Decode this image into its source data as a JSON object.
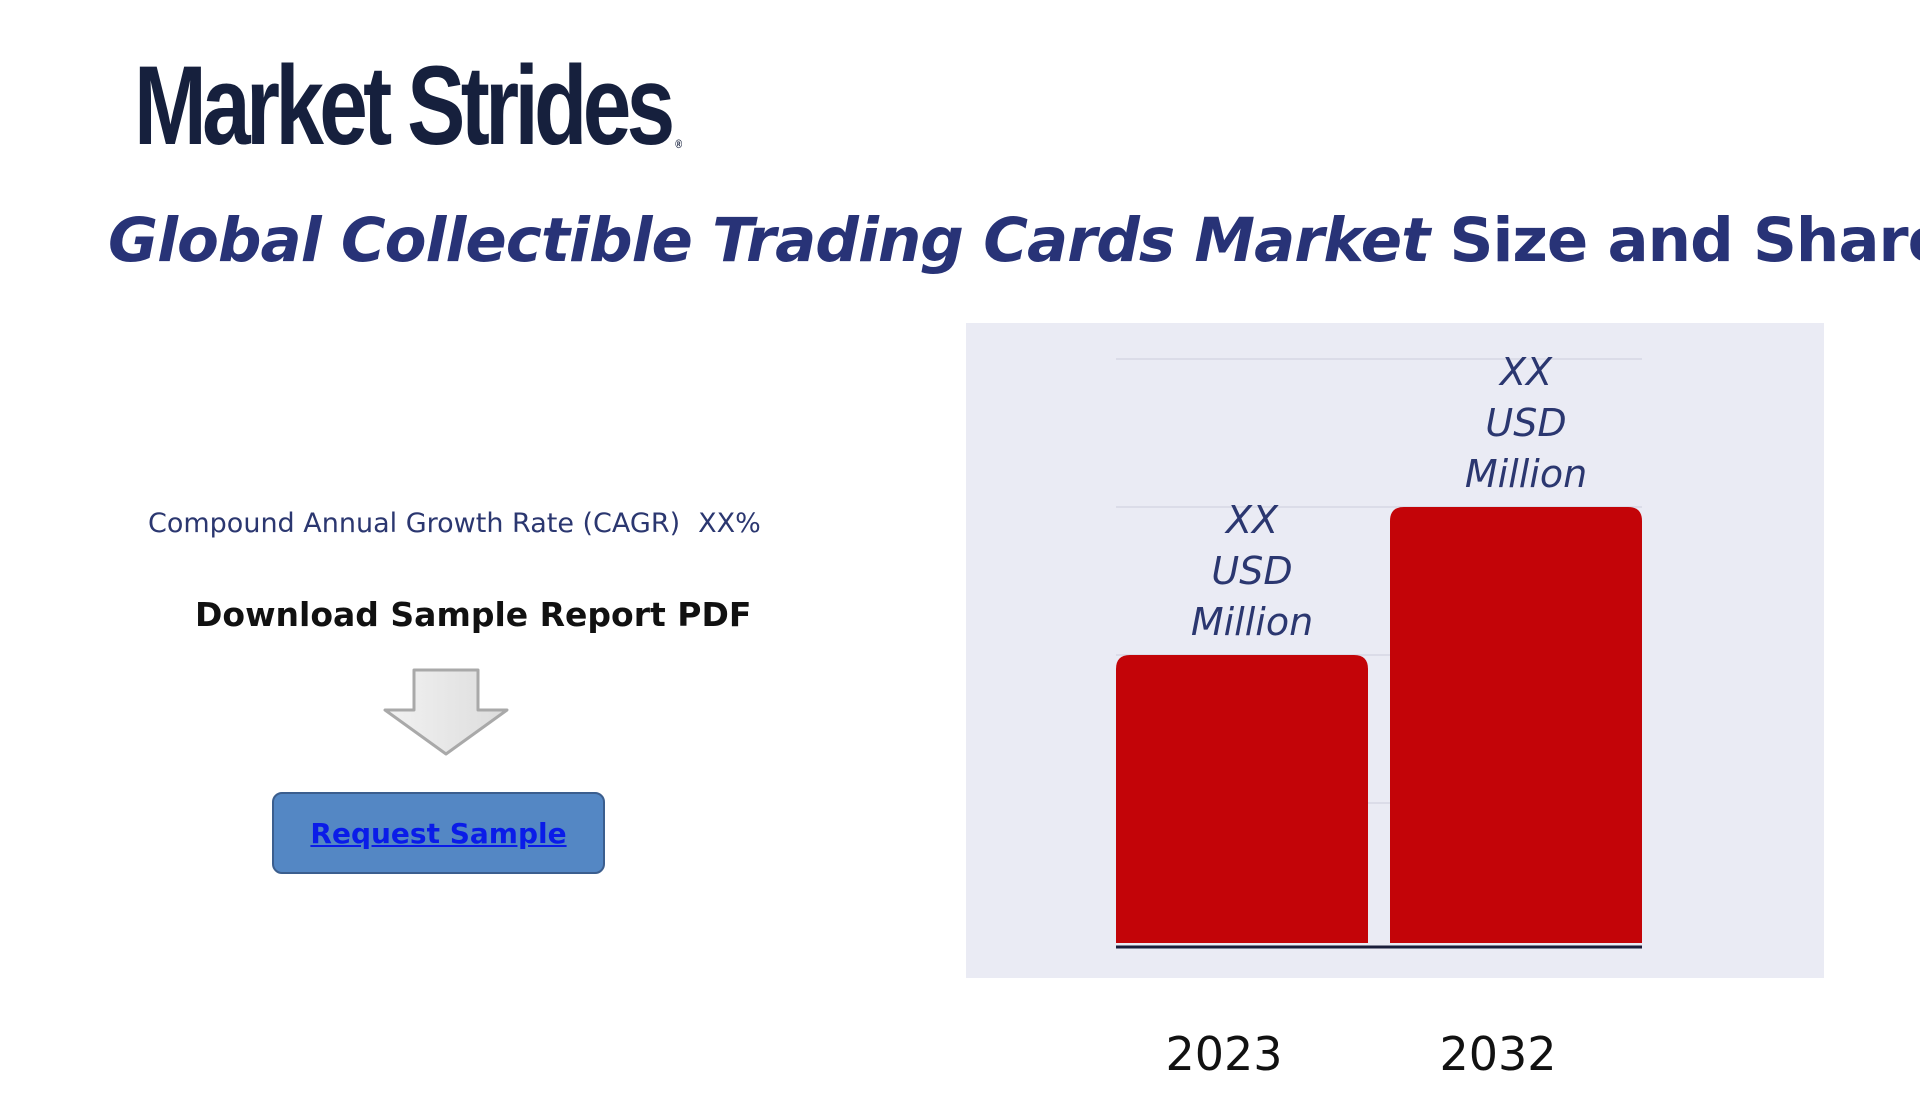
{
  "brand": {
    "name": "Market Strides",
    "mark": "®"
  },
  "title": {
    "italic_part": "Global Collectible Trading Cards Market",
    "rest": "Size and Share"
  },
  "cagr": {
    "label": "Compound Annual Growth Rate (CAGR)",
    "value": "XX%"
  },
  "download": {
    "label": "Download Sample Report PDF",
    "icon": "down-arrow-icon"
  },
  "request_button": {
    "label": "Request Sample"
  },
  "colors": {
    "bar": "#c30408",
    "title": "#283377",
    "panel": "#eaebf4",
    "button": "#5487c4"
  },
  "chart_data": {
    "type": "bar",
    "categories": [
      "2023",
      "2032"
    ],
    "values": [
      2,
      3
    ],
    "data_labels": [
      [
        "XX",
        "USD",
        "Million"
      ],
      [
        "XX",
        "USD",
        "Million"
      ]
    ],
    "ylim": [
      0,
      4
    ],
    "grid": true,
    "legend": "none"
  }
}
